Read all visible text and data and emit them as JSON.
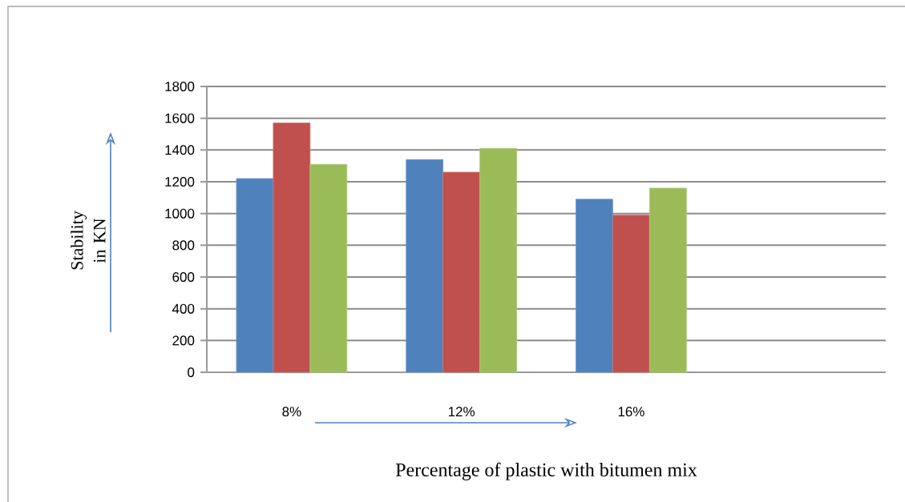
{
  "chart_data": {
    "type": "bar",
    "xlabel": "Percentage of plastic with bitumen mix",
    "ylabel": "Stability in KN",
    "categories": [
      "8%",
      "12%",
      "16%",
      null
    ],
    "series": [
      {
        "color": "#4f81bd",
        "values": [
          1220,
          1340,
          1090,
          null
        ]
      },
      {
        "color": "#c0504d",
        "values": [
          1570,
          1260,
          990,
          null
        ]
      },
      {
        "color": "#9bbb59",
        "values": [
          1310,
          1410,
          1160,
          null
        ]
      }
    ],
    "ylim": [
      0,
      1800
    ],
    "yticks": [
      0,
      200,
      400,
      600,
      800,
      1000,
      1200,
      1400,
      1600,
      1800
    ],
    "grid": "y"
  }
}
